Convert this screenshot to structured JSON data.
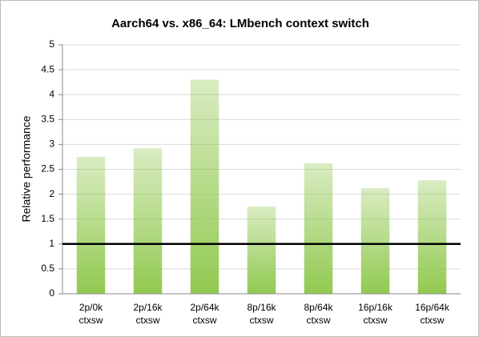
{
  "chart_data": {
    "type": "bar",
    "title": "Aarch64 vs. x86_64: LMbench context switch",
    "y_label": "Relative performance",
    "categories": [
      [
        "2p/0k",
        "ctxsw"
      ],
      [
        "2p/16k",
        "ctxsw"
      ],
      [
        "2p/64k",
        "ctxsw"
      ],
      [
        "8p/16k",
        "ctxsw"
      ],
      [
        "8p/64k",
        "ctxsw"
      ],
      [
        "16p/16k",
        "ctxsw"
      ],
      [
        "16p/64k",
        "ctxsw"
      ]
    ],
    "values": [
      2.75,
      2.92,
      4.3,
      1.75,
      2.62,
      2.12,
      2.28
    ],
    "color": "#92c951",
    "reference_line": 1,
    "ylim": [
      0,
      5
    ],
    "yticks": [
      0,
      0.5,
      1,
      1.5,
      2,
      2.5,
      3,
      3.5,
      4,
      4.5,
      5
    ],
    "grid": true
  }
}
